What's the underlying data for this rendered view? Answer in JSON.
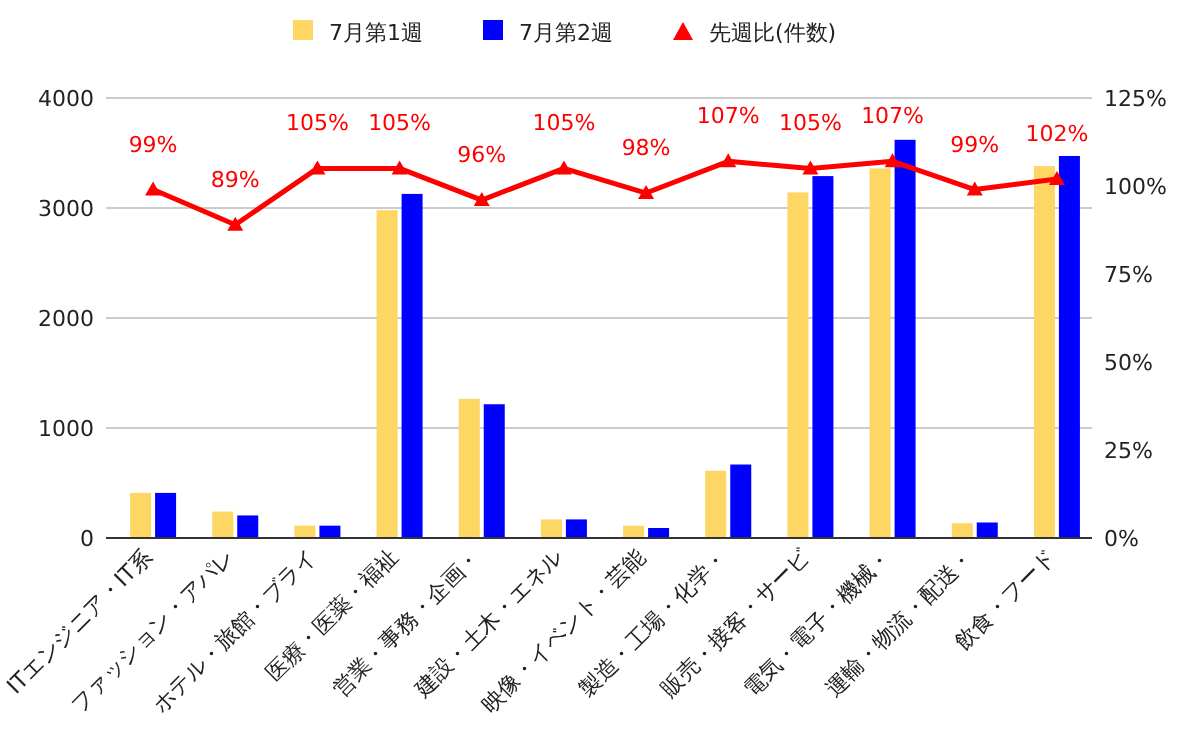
{
  "chart_data": {
    "type": "bar",
    "categories": [
      "ITエンジニア・IT系",
      "ファッション・アパレ",
      "ホテル・旅館・ブライ",
      "医療・医薬・福祉",
      "営業・事務・企画・",
      "建設・土木・エネル",
      "映像・イベント・芸能",
      "製造・工場・化学・",
      "販売・接客・サービ",
      "電気・電子・機械・",
      "運輸・物流・配送・",
      "飲食・フード"
    ],
    "series": [
      {
        "name": "7月第1週",
        "color": "#fdd663",
        "values": [
          410,
          240,
          112,
          2980,
          1265,
          169,
          112,
          612,
          3142,
          3360,
          134,
          3381
        ]
      },
      {
        "name": "7月第2週",
        "color": "#0000ff",
        "values": [
          410,
          205,
          112,
          3128,
          1216,
          169,
          91,
          668,
          3290,
          3620,
          141,
          3473
        ]
      },
      {
        "name": "先週比(件数)",
        "type": "line",
        "axis": "y2",
        "color": "#ff0000",
        "marker": "triangle",
        "values": [
          99,
          89,
          105,
          105,
          96,
          105,
          98,
          107,
          105,
          107,
          99,
          102
        ],
        "value_labels": [
          "99%",
          "89%",
          "105%",
          "105%",
          "96%",
          "105%",
          "98%",
          "107%",
          "105%",
          "107%",
          "99%",
          "102%"
        ]
      }
    ],
    "ylim": [
      0,
      4000
    ],
    "yticks": [
      0,
      1000,
      2000,
      3000,
      4000
    ],
    "y2lim": [
      0,
      125
    ],
    "y2ticks": [
      {
        "value": 0,
        "label": "0%"
      },
      {
        "value": 25,
        "label": "25%"
      },
      {
        "value": 50,
        "label": "50%"
      },
      {
        "value": 75,
        "label": "75%"
      },
      {
        "value": 100,
        "label": "100%"
      },
      {
        "value": 125,
        "label": "125%"
      }
    ],
    "grid": "y",
    "legend": "top"
  }
}
